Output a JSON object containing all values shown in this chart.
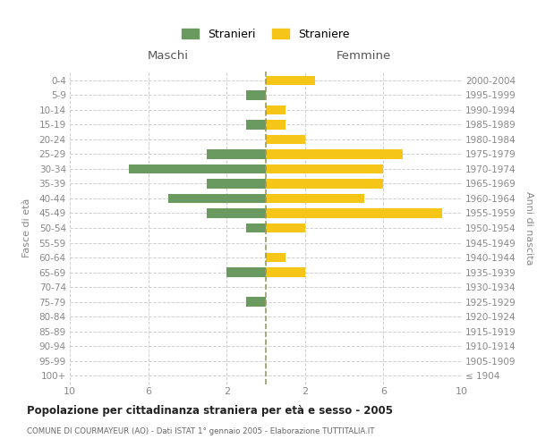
{
  "age_groups": [
    "100+",
    "95-99",
    "90-94",
    "85-89",
    "80-84",
    "75-79",
    "70-74",
    "65-69",
    "60-64",
    "55-59",
    "50-54",
    "45-49",
    "40-44",
    "35-39",
    "30-34",
    "25-29",
    "20-24",
    "15-19",
    "10-14",
    "5-9",
    "0-4"
  ],
  "birth_years": [
    "≤ 1904",
    "1905-1909",
    "1910-1914",
    "1915-1919",
    "1920-1924",
    "1925-1929",
    "1930-1934",
    "1935-1939",
    "1940-1944",
    "1945-1949",
    "1950-1954",
    "1955-1959",
    "1960-1964",
    "1965-1969",
    "1970-1974",
    "1975-1979",
    "1980-1984",
    "1985-1989",
    "1990-1994",
    "1995-1999",
    "2000-2004"
  ],
  "males": [
    0,
    0,
    0,
    0,
    0,
    1,
    0,
    2,
    0,
    0,
    1,
    3,
    5,
    3,
    7,
    3,
    0,
    1,
    0,
    1,
    0
  ],
  "females": [
    0,
    0,
    0,
    0,
    0,
    0,
    0,
    2,
    1,
    0,
    2,
    9,
    5,
    6,
    6,
    7,
    2,
    1,
    1,
    0,
    2.5
  ],
  "male_color": "#6a9a5f",
  "female_color": "#f5c518",
  "title": "Popolazione per cittadinanza straniera per età e sesso - 2005",
  "subtitle": "COMUNE DI COURMAYEUR (AO) - Dati ISTAT 1° gennaio 2005 - Elaborazione TUTTITALIA.IT",
  "ylabel_left": "Fasce di età",
  "ylabel_right": "Anni di nascita",
  "xlabel_left": "Maschi",
  "xlabel_right": "Femmine",
  "legend_male": "Stranieri",
  "legend_female": "Straniere",
  "xlim": 10,
  "background_color": "#ffffff",
  "grid_color": "#d0d0d0"
}
